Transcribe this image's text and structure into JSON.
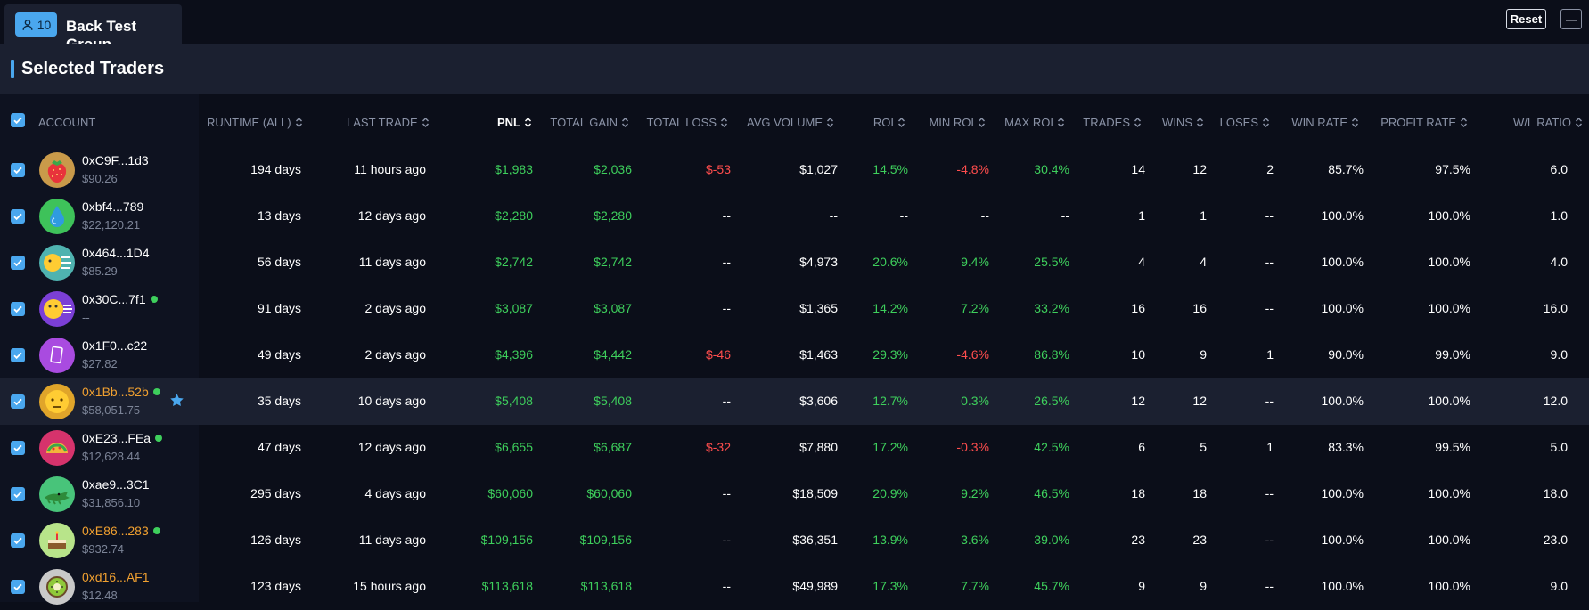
{
  "group": {
    "member_count": "10",
    "name": "Back Test Group"
  },
  "controls": {
    "reset_label": "Reset",
    "minus_label": "—"
  },
  "section": {
    "title": "Selected Traders"
  },
  "columns": [
    "ACCOUNT",
    "RUNTIME (ALL)",
    "LAST TRADE",
    "PNL",
    "TOTAL GAIN",
    "TOTAL LOSS",
    "AVG VOLUME",
    "ROI",
    "MIN ROI",
    "MAX ROI",
    "TRADES",
    "WINS",
    "LOSES",
    "WIN RATE",
    "PROFIT RATE",
    "W/L RATIO"
  ],
  "active_sort_column": "PNL",
  "colors": {
    "accent": "#4aa7ee",
    "positive": "#3ecf5c",
    "negative": "#ff4d4d",
    "highlight_row": "#1b2030",
    "address_orange": "#f0a030"
  },
  "rows": [
    {
      "address": "0xC9F...1d3",
      "balance": "$90.26",
      "online": false,
      "address_color": "white",
      "avatar": "strawberry",
      "avatar_bg": "#c99a4a",
      "starred": false,
      "runtime": "194 days",
      "last_trade": "11 hours ago",
      "pnl": "$1,983",
      "total_gain": "$2,036",
      "total_loss": "$-53",
      "avg_volume": "$1,027",
      "roi": "14.5%",
      "min_roi": "-4.8%",
      "max_roi": "30.4%",
      "trades": "14",
      "wins": "12",
      "loses": "2",
      "win_rate": "85.7%",
      "profit_rate": "97.5%",
      "wl_ratio": "6.0"
    },
    {
      "address": "0xbf4...789",
      "balance": "$22,120.21",
      "online": false,
      "address_color": "white",
      "avatar": "droplet",
      "avatar_bg": "#3ec25a",
      "starred": false,
      "runtime": "13 days",
      "last_trade": "12 days ago",
      "pnl": "$2,280",
      "total_gain": "$2,280",
      "total_loss": "--",
      "avg_volume": "--",
      "roi": "--",
      "min_roi": "--",
      "max_roi": "--",
      "trades": "1",
      "wins": "1",
      "loses": "--",
      "win_rate": "100.0%",
      "profit_rate": "100.0%",
      "wl_ratio": "1.0"
    },
    {
      "address": "0x464...1D4",
      "balance": "$85.29",
      "online": false,
      "address_color": "white",
      "avatar": "windy-face",
      "avatar_bg": "#4fb3b0",
      "starred": false,
      "runtime": "56 days",
      "last_trade": "11 days ago",
      "pnl": "$2,742",
      "total_gain": "$2,742",
      "total_loss": "--",
      "avg_volume": "$4,973",
      "roi": "20.6%",
      "min_roi": "9.4%",
      "max_roi": "25.5%",
      "trades": "4",
      "wins": "4",
      "loses": "--",
      "win_rate": "100.0%",
      "profit_rate": "100.0%",
      "wl_ratio": "4.0"
    },
    {
      "address": "0x30C...7f1",
      "balance": "--",
      "online": true,
      "address_color": "white",
      "avatar": "blowing-face",
      "avatar_bg": "#7b3fd6",
      "starred": false,
      "runtime": "91 days",
      "last_trade": "2 days ago",
      "pnl": "$3,087",
      "total_gain": "$3,087",
      "total_loss": "--",
      "avg_volume": "$1,365",
      "roi": "14.2%",
      "min_roi": "7.2%",
      "max_roi": "33.2%",
      "trades": "16",
      "wins": "16",
      "loses": "--",
      "win_rate": "100.0%",
      "profit_rate": "100.0%",
      "wl_ratio": "16.0"
    },
    {
      "address": "0x1F0...c22",
      "balance": "$27.82",
      "online": false,
      "address_color": "white",
      "avatar": "card",
      "avatar_bg": "#a94be0",
      "starred": false,
      "runtime": "49 days",
      "last_trade": "2 days ago",
      "pnl": "$4,396",
      "total_gain": "$4,442",
      "total_loss": "$-46",
      "avg_volume": "$1,463",
      "roi": "29.3%",
      "min_roi": "-4.6%",
      "max_roi": "86.8%",
      "trades": "10",
      "wins": "9",
      "loses": "1",
      "win_rate": "90.0%",
      "profit_rate": "99.0%",
      "wl_ratio": "9.0"
    },
    {
      "address": "0x1Bb...52b",
      "balance": "$58,051.75",
      "online": true,
      "address_color": "orange",
      "avatar": "neutral-face",
      "avatar_bg": "#e0a52a",
      "starred": true,
      "runtime": "35 days",
      "last_trade": "10 days ago",
      "pnl": "$5,408",
      "total_gain": "$5,408",
      "total_loss": "--",
      "avg_volume": "$3,606",
      "roi": "12.7%",
      "min_roi": "0.3%",
      "max_roi": "26.5%",
      "trades": "12",
      "wins": "12",
      "loses": "--",
      "win_rate": "100.0%",
      "profit_rate": "100.0%",
      "wl_ratio": "12.0"
    },
    {
      "address": "0xE23...FEa",
      "balance": "$12,628.44",
      "online": true,
      "address_color": "white",
      "avatar": "taco",
      "avatar_bg": "#d6336c",
      "starred": false,
      "runtime": "47 days",
      "last_trade": "12 days ago",
      "pnl": "$6,655",
      "total_gain": "$6,687",
      "total_loss": "$-32",
      "avg_volume": "$7,880",
      "roi": "17.2%",
      "min_roi": "-0.3%",
      "max_roi": "42.5%",
      "trades": "6",
      "wins": "5",
      "loses": "1",
      "win_rate": "83.3%",
      "profit_rate": "99.5%",
      "wl_ratio": "5.0"
    },
    {
      "address": "0xae9...3C1",
      "balance": "$31,856.10",
      "online": false,
      "address_color": "white",
      "avatar": "crocodile",
      "avatar_bg": "#48c47a",
      "starred": false,
      "runtime": "295 days",
      "last_trade": "4 days ago",
      "pnl": "$60,060",
      "total_gain": "$60,060",
      "total_loss": "--",
      "avg_volume": "$18,509",
      "roi": "20.9%",
      "min_roi": "9.2%",
      "max_roi": "46.5%",
      "trades": "18",
      "wins": "18",
      "loses": "--",
      "win_rate": "100.0%",
      "profit_rate": "100.0%",
      "wl_ratio": "18.0"
    },
    {
      "address": "0xE86...283",
      "balance": "$932.74",
      "online": true,
      "address_color": "orange",
      "avatar": "cake",
      "avatar_bg": "#b8e48a",
      "starred": false,
      "runtime": "126 days",
      "last_trade": "11 days ago",
      "pnl": "$109,156",
      "total_gain": "$109,156",
      "total_loss": "--",
      "avg_volume": "$36,351",
      "roi": "13.9%",
      "min_roi": "3.6%",
      "max_roi": "39.0%",
      "trades": "23",
      "wins": "23",
      "loses": "--",
      "win_rate": "100.0%",
      "profit_rate": "100.0%",
      "wl_ratio": "23.0"
    },
    {
      "address": "0xd16...AF1",
      "balance": "$12.48",
      "online": false,
      "address_color": "orange",
      "avatar": "kiwi",
      "avatar_bg": "#c9c9c9",
      "starred": false,
      "runtime": "123 days",
      "last_trade": "15 hours ago",
      "pnl": "$113,618",
      "total_gain": "$113,618",
      "total_loss": "--",
      "avg_volume": "$49,989",
      "roi": "17.3%",
      "min_roi": "7.7%",
      "max_roi": "45.7%",
      "trades": "9",
      "wins": "9",
      "loses": "--",
      "win_rate": "100.0%",
      "profit_rate": "100.0%",
      "wl_ratio": "9.0"
    }
  ]
}
